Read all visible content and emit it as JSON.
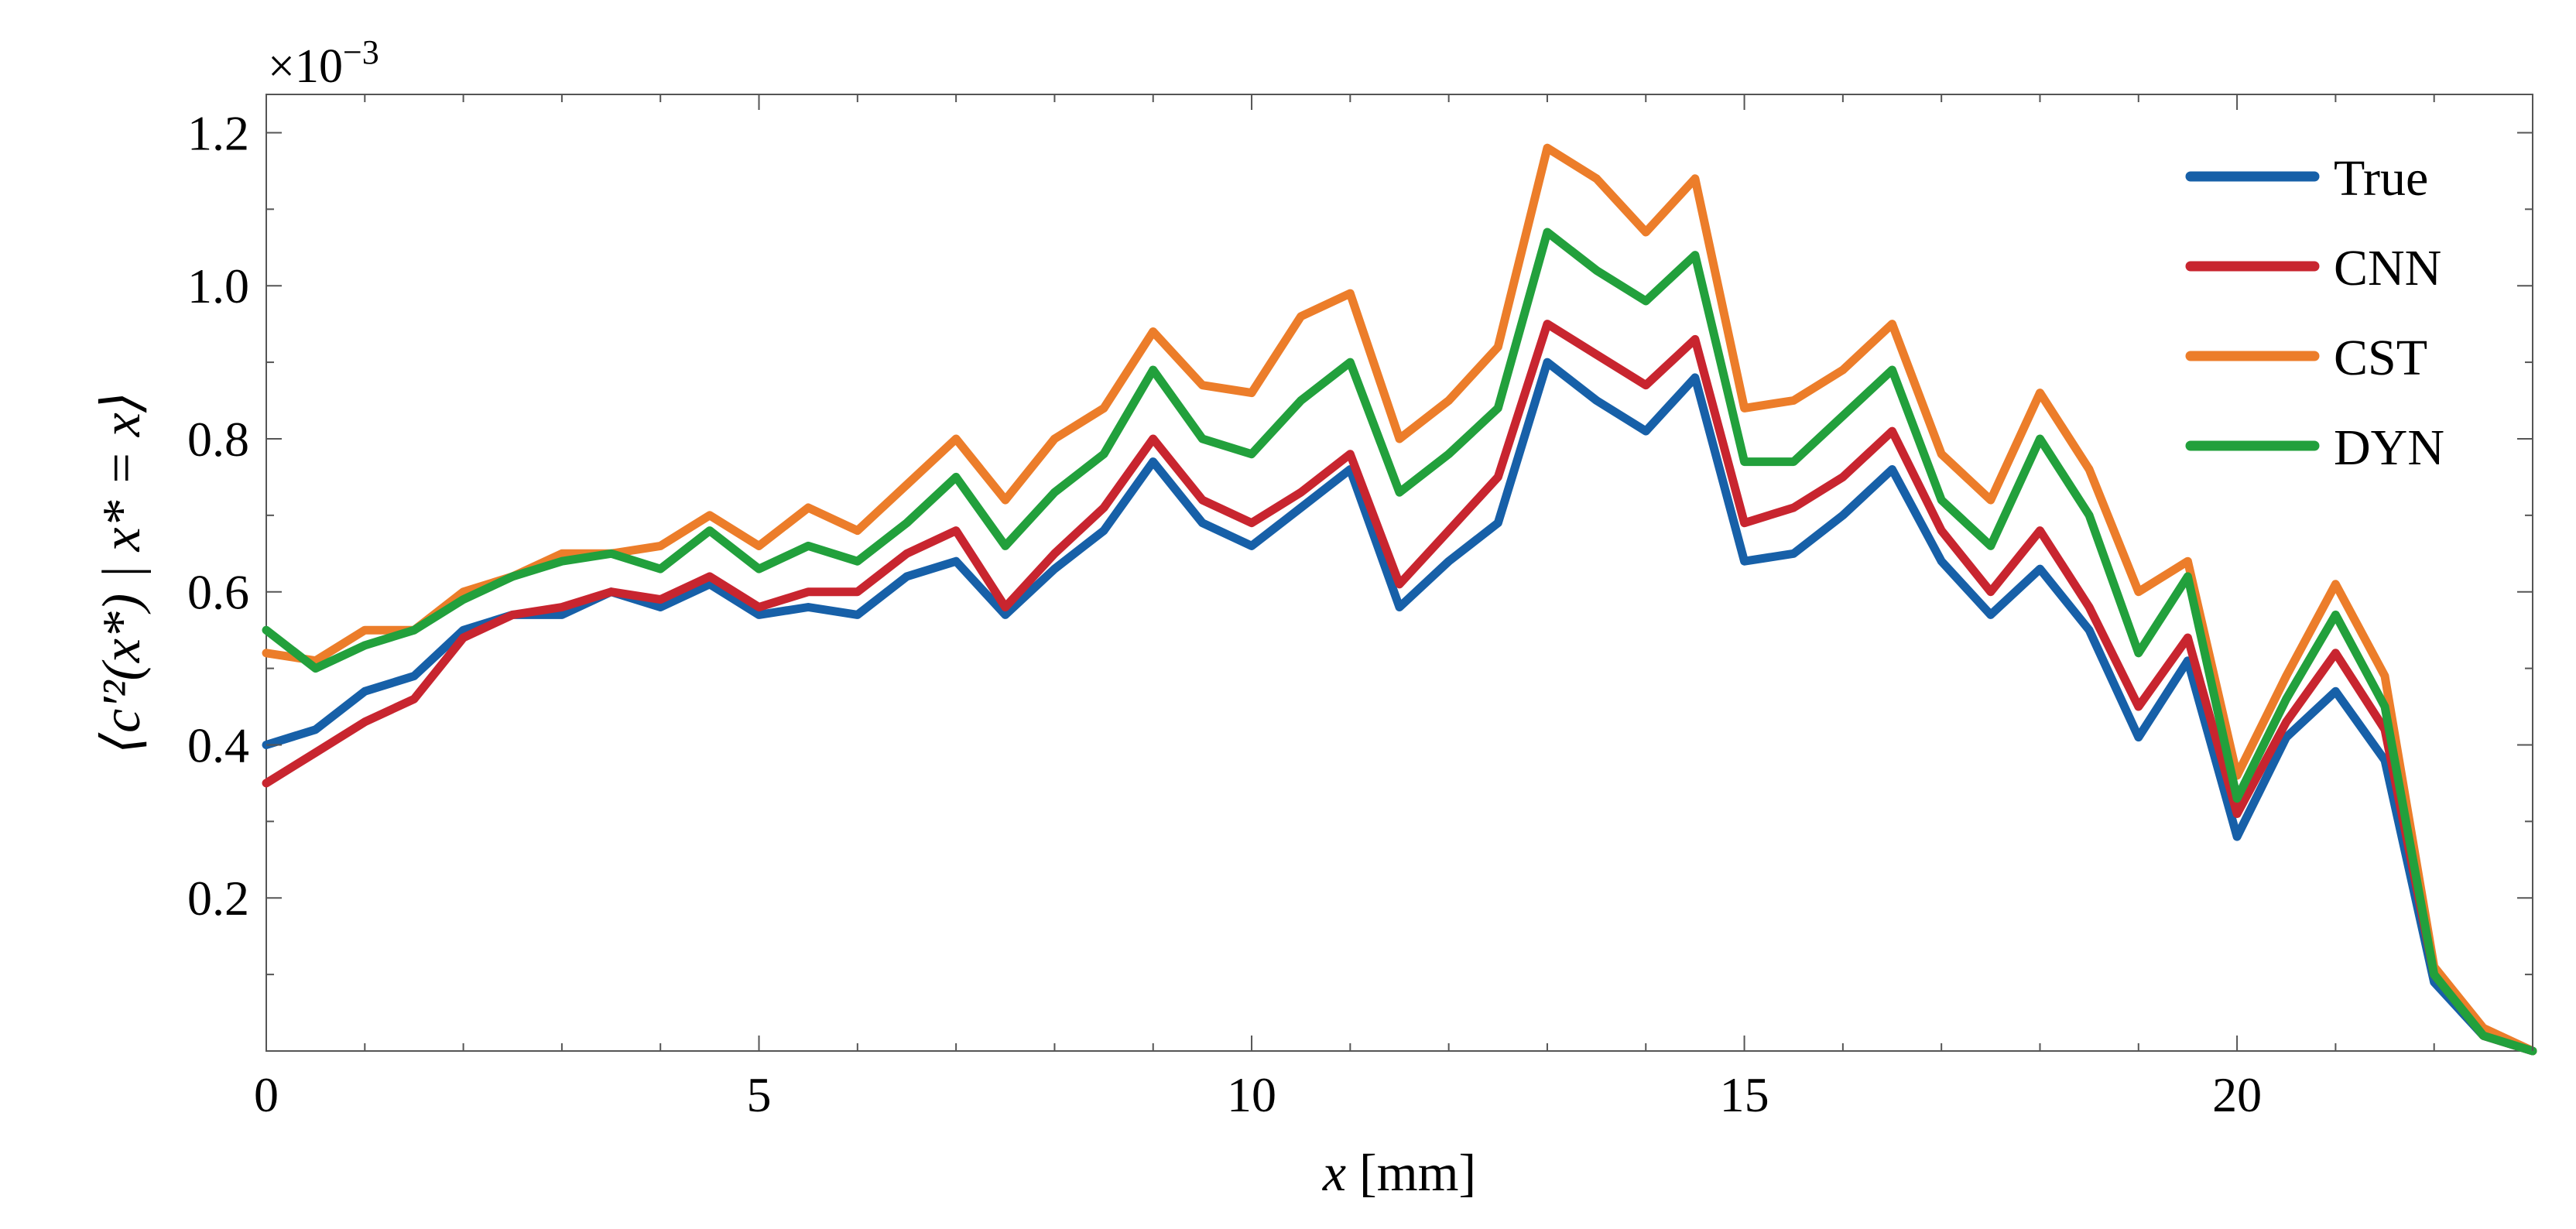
{
  "chart_data": {
    "type": "line",
    "xlabel": "x [mm]",
    "xlabel_var": "x",
    "xlabel_unit": "[mm]",
    "ylabel": "⟨c′²(x*) | x* = x⟩",
    "y_multiplier": "×10",
    "y_multiplier_exp": "−3",
    "xlim": [
      0,
      23
    ],
    "ylim": [
      0,
      0.00125
    ],
    "x_ticks": [
      0,
      5,
      10,
      15,
      20
    ],
    "y_ticks": [
      0.2,
      0.4,
      0.6,
      0.8,
      1.0,
      1.2
    ],
    "y_tick_labels": [
      "0.2",
      "0.4",
      "0.6",
      "0.8",
      "1.0",
      "1.2"
    ],
    "legend_position": "top-right",
    "grid": false,
    "x": [
      0,
      0.5,
      1,
      1.5,
      2,
      2.5,
      3,
      3.5,
      4,
      4.5,
      5,
      5.5,
      6,
      6.5,
      7,
      7.5,
      8,
      8.5,
      9,
      9.5,
      10,
      10.5,
      11,
      11.5,
      12,
      12.5,
      13,
      13.5,
      14,
      14.5,
      15,
      15.5,
      16,
      16.5,
      17,
      17.5,
      18,
      18.5,
      19,
      19.5,
      20,
      20.5,
      21,
      21.5,
      22,
      22.5,
      23
    ],
    "series": [
      {
        "name": "True",
        "color": "#1760a8",
        "values": [
          0.0004,
          0.00042,
          0.00047,
          0.00049,
          0.00055,
          0.00057,
          0.00057,
          0.0006,
          0.00058,
          0.00061,
          0.00057,
          0.00058,
          0.00057,
          0.00062,
          0.00064,
          0.00057,
          0.00063,
          0.00068,
          0.00077,
          0.00069,
          0.00066,
          0.00071,
          0.00076,
          0.00058,
          0.00064,
          0.00069,
          0.0009,
          0.00085,
          0.00081,
          0.00088,
          0.00064,
          0.00065,
          0.0007,
          0.00076,
          0.00064,
          0.00057,
          0.00063,
          0.00055,
          0.00041,
          0.00051,
          0.00028,
          0.00041,
          0.00047,
          0.00038,
          9e-05,
          2e-05,
          0.0
        ]
      },
      {
        "name": "CNN",
        "color": "#c8252f",
        "values": [
          0.00035,
          0.00039,
          0.00043,
          0.00046,
          0.00054,
          0.00057,
          0.00058,
          0.0006,
          0.00059,
          0.00062,
          0.00058,
          0.0006,
          0.0006,
          0.00065,
          0.00068,
          0.00058,
          0.00065,
          0.00071,
          0.0008,
          0.00072,
          0.00069,
          0.00073,
          0.00078,
          0.00061,
          0.00068,
          0.00075,
          0.00095,
          0.00091,
          0.00087,
          0.00093,
          0.00069,
          0.00071,
          0.00075,
          0.00081,
          0.00068,
          0.0006,
          0.00068,
          0.00058,
          0.00045,
          0.00054,
          0.00031,
          0.00043,
          0.00052,
          0.00042,
          0.0001,
          2e-05,
          0.0
        ]
      },
      {
        "name": "CST",
        "color": "#ec7d2a",
        "values": [
          0.00052,
          0.00051,
          0.00055,
          0.00055,
          0.0006,
          0.00062,
          0.00065,
          0.00065,
          0.00066,
          0.0007,
          0.00066,
          0.00071,
          0.00068,
          0.00074,
          0.0008,
          0.00072,
          0.0008,
          0.00084,
          0.00094,
          0.00087,
          0.00086,
          0.00096,
          0.00099,
          0.0008,
          0.00085,
          0.00092,
          0.00118,
          0.00114,
          0.00107,
          0.00114,
          0.00084,
          0.00085,
          0.00089,
          0.00095,
          0.00078,
          0.00072,
          0.00086,
          0.00076,
          0.0006,
          0.00064,
          0.00036,
          0.00049,
          0.00061,
          0.00049,
          0.00011,
          3e-05,
          0.0
        ]
      },
      {
        "name": "DYN",
        "color": "#22a03c",
        "values": [
          0.00055,
          0.0005,
          0.00053,
          0.00055,
          0.00059,
          0.00062,
          0.00064,
          0.00065,
          0.00063,
          0.00068,
          0.00063,
          0.00066,
          0.00064,
          0.00069,
          0.00075,
          0.00066,
          0.00073,
          0.00078,
          0.00089,
          0.0008,
          0.00078,
          0.00085,
          0.0009,
          0.00073,
          0.00078,
          0.00084,
          0.00107,
          0.00102,
          0.00098,
          0.00104,
          0.00077,
          0.00077,
          0.00083,
          0.00089,
          0.00072,
          0.00066,
          0.0008,
          0.0007,
          0.00052,
          0.00062,
          0.00033,
          0.00046,
          0.00057,
          0.00045,
          0.0001,
          2e-05,
          0.0
        ]
      }
    ]
  }
}
